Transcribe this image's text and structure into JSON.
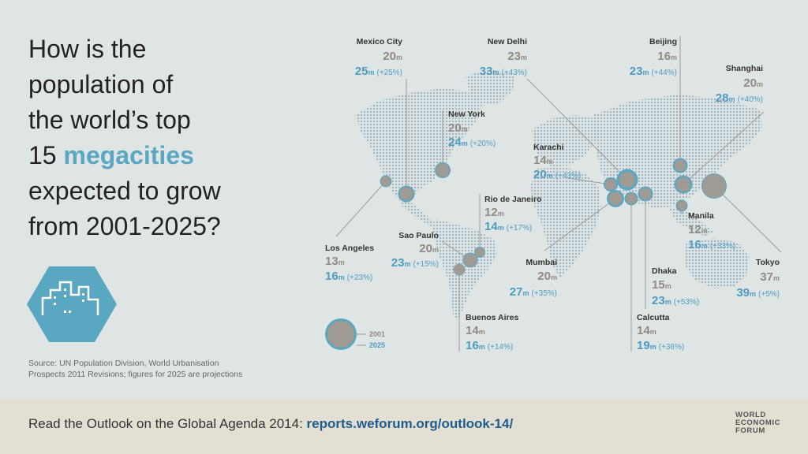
{
  "headline": {
    "line1": "How is the",
    "line2": "population of",
    "line3": "the world’s top",
    "line4_num": "15",
    "line4_highlight": "megacities",
    "line5": "expected to grow",
    "line6": "from 2001-2025?"
  },
  "unit": "m",
  "cities": [
    {
      "id": "mexico-city",
      "name": "Mexico City",
      "pop2001": "20",
      "pop2025": "25",
      "change": "(+25%)"
    },
    {
      "id": "new-delhi",
      "name": "New Delhi",
      "pop2001": "23",
      "pop2025": "33",
      "change": "(+43%)"
    },
    {
      "id": "beijing",
      "name": "Beijing",
      "pop2001": "16",
      "pop2025": "23",
      "change": "(+44%)"
    },
    {
      "id": "shanghai",
      "name": "Shanghai",
      "pop2001": "20",
      "pop2025": "28",
      "change": "(+40%)"
    },
    {
      "id": "new-york",
      "name": "New York",
      "pop2001": "20",
      "pop2025": "24",
      "change": "(+20%)"
    },
    {
      "id": "karachi",
      "name": "Karachi",
      "pop2001": "14",
      "pop2025": "20",
      "change": "(+43%)"
    },
    {
      "id": "rio-de-janeiro",
      "name": "Rio de Janeiro",
      "pop2001": "12",
      "pop2025": "14",
      "change": "(+17%)"
    },
    {
      "id": "sao-paulo",
      "name": "Sao Paulo",
      "pop2001": "20",
      "pop2025": "23",
      "change": "(+15%)"
    },
    {
      "id": "los-angeles",
      "name": "Los Angeles",
      "pop2001": "13",
      "pop2025": "16",
      "change": "(+23%)"
    },
    {
      "id": "manila",
      "name": "Manila",
      "pop2001": "12",
      "pop2025": "16",
      "change": "(+33%)"
    },
    {
      "id": "mumbai",
      "name": "Mumbai",
      "pop2001": "20",
      "pop2025": "27",
      "change": "(+35%)"
    },
    {
      "id": "dhaka",
      "name": "Dhaka",
      "pop2001": "15",
      "pop2025": "23",
      "change": "(+53%)"
    },
    {
      "id": "tokyo",
      "name": "Tokyo",
      "pop2001": "37",
      "pop2025": "39",
      "change": "(+5%)"
    },
    {
      "id": "buenos-aires",
      "name": "Buenos Aires",
      "pop2001": "14",
      "pop2025": "16",
      "change": "(+14%)"
    },
    {
      "id": "calcutta",
      "name": "Calcutta",
      "pop2001": "14",
      "pop2025": "19",
      "change": "(+36%)"
    }
  ],
  "legend": {
    "label_2001": "2001",
    "label_2025": "2025"
  },
  "source": {
    "line1": "Source: UN Population Division, World Urbanisation",
    "line2": "Prospects 2011 Revisions; figures for 2025 are projections"
  },
  "footer": {
    "text": "Read the Outlook on the Global Agenda 2014: ",
    "link": "reports.weforum.org/outlook-14/",
    "logo_line1": "WORLD",
    "logo_line2": "ECONOMIC",
    "logo_line3": "FORUM"
  },
  "colors": {
    "background": "#dfe5e5",
    "map_dots": "#a3b7c2",
    "accent_blue": "#5aa7c2",
    "grey_value": "#8e8a85",
    "footer_bg": "#e4dfd3"
  }
}
